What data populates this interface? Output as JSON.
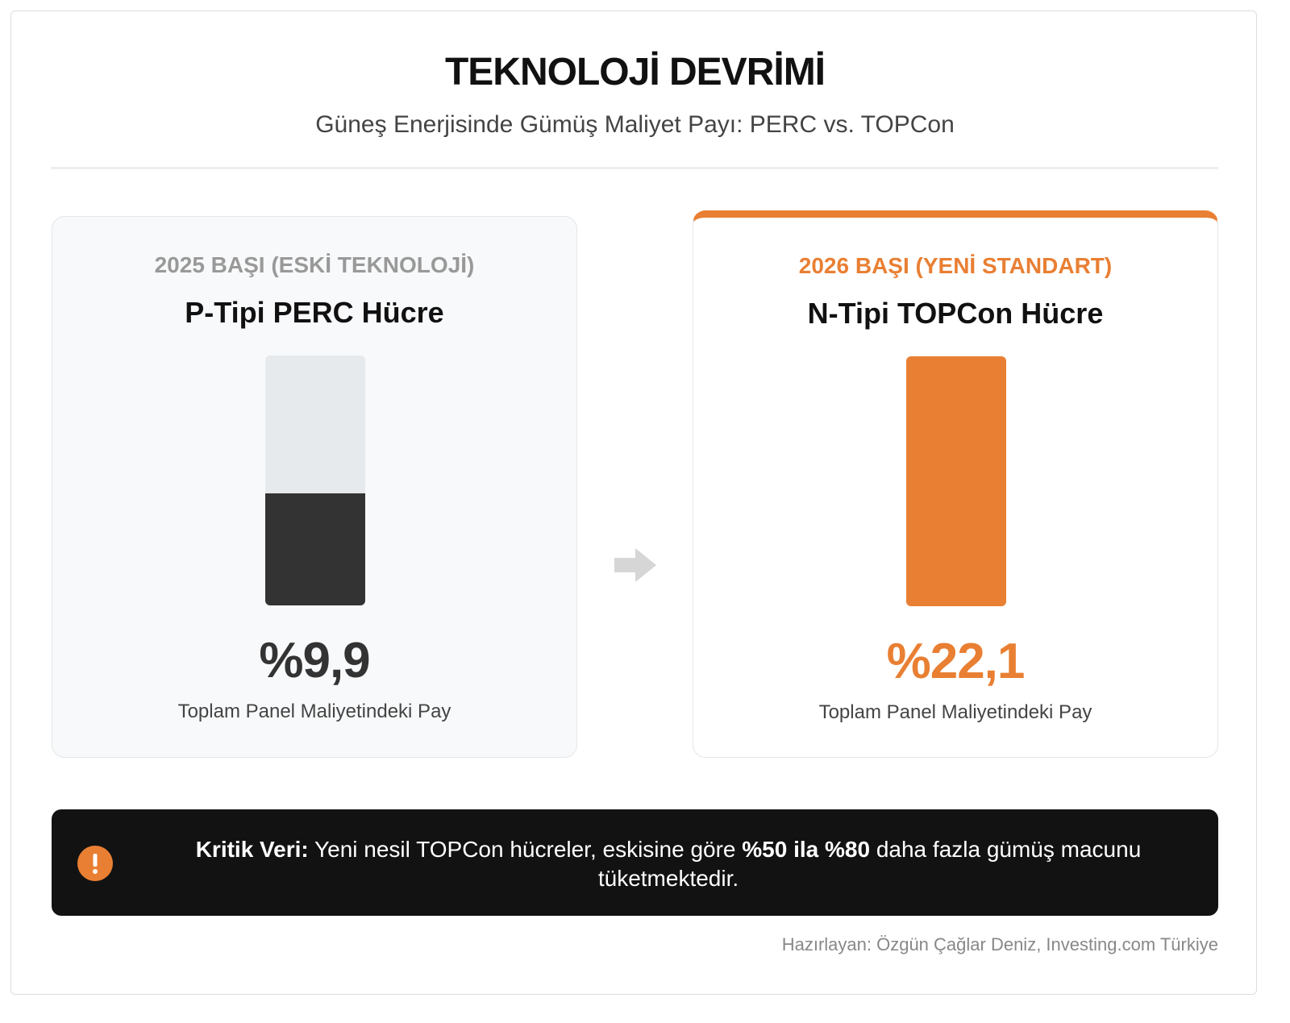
{
  "chart_data": {
    "type": "bar",
    "title": "TEKNOLOJİ DEVRİMİ",
    "subtitle": "Güneş Enerjisinde Gümüş Maliyet Payı: PERC vs. TOPCon",
    "ylim": [
      0,
      22.1
    ],
    "series": [
      {
        "period": "2025 BAŞI (ESKİ TEKNOLOJİ)",
        "name": "P-Tipi PERC Hücre",
        "color": "#333333",
        "values": [
          9.9
        ],
        "value_labels": [
          "%9,9"
        ],
        "caption": "Toplam Panel Maliyetindeki Pay"
      },
      {
        "period": "2026 BAŞI (YENİ STANDART)",
        "name": "N-Tipi TOPCon Hücre",
        "color": "#e97f33",
        "values": [
          22.1
        ],
        "value_labels": [
          "%22,1"
        ],
        "caption": "Toplam Panel Maliyetindeki Pay"
      }
    ]
  },
  "callout": {
    "segments": [
      {
        "text": "Kritik Veri:",
        "bold": true
      },
      {
        "text": " Yeni nesil TOPCon hücreler, eskisine göre ",
        "bold": false
      },
      {
        "text": "%50 ila %80",
        "bold": true
      },
      {
        "text": " daha fazla gümüş macunu tüketmektedir.",
        "bold": false
      }
    ]
  },
  "credit": "Hazırlayan: Özgün Çağlar Deniz, Investing.com Türkiye"
}
